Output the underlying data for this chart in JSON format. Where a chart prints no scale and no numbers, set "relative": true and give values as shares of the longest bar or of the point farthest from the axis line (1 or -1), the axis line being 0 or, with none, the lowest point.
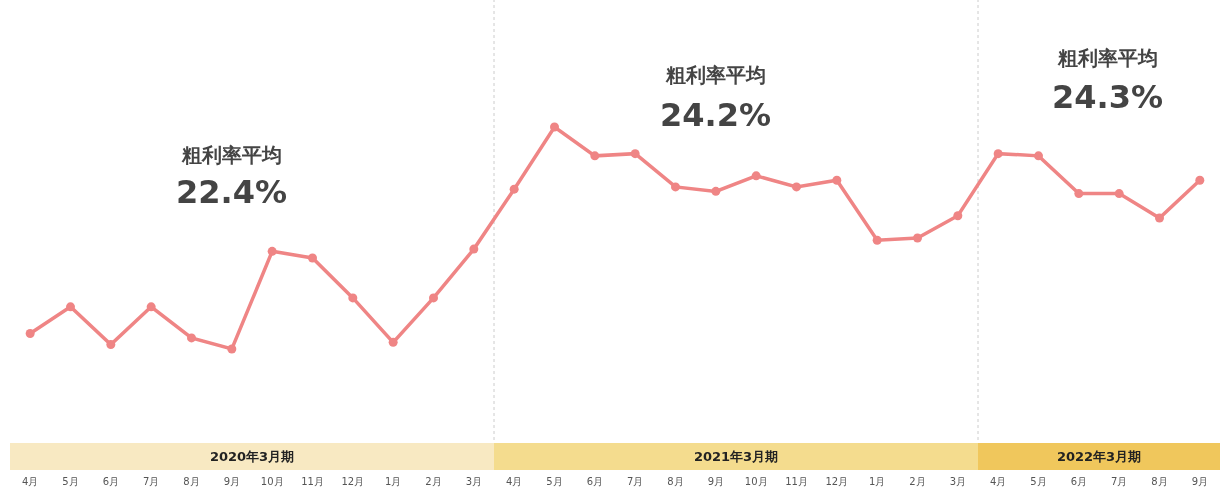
{
  "chart_data": {
    "type": "line",
    "relative": true,
    "categories": [
      "4月",
      "5月",
      "6月",
      "7月",
      "8月",
      "9月",
      "10月",
      "11月",
      "12月",
      "1月",
      "2月",
      "3月",
      "4月",
      "5月",
      "6月",
      "7月",
      "8月",
      "9月",
      "10月",
      "11月",
      "12月",
      "1月",
      "2月",
      "3月",
      "4月",
      "5月",
      "6月",
      "7月",
      "8月",
      "9月"
    ],
    "series": [
      {
        "color": "#ef8585",
        "values": [
          0.07,
          0.19,
          0.02,
          0.19,
          0.05,
          0,
          0.44,
          0.41,
          0.23,
          0.03,
          0.23,
          0.45,
          0.72,
          1,
          0.87,
          0.88,
          0.73,
          0.71,
          0.78,
          0.73,
          0.76,
          0.49,
          0.5,
          0.6,
          0.88,
          0.87,
          0.7,
          0.7,
          0.59,
          0.76
        ]
      }
    ],
    "marker": "circle",
    "grid": false,
    "annotations": [
      "粗利率平均\n22.4%",
      "粗利率平均\n24.2%",
      "粗利率平均\n24.3%",
      "2020年3月期",
      "2021年3月期",
      "2022年3月期"
    ]
  }
}
